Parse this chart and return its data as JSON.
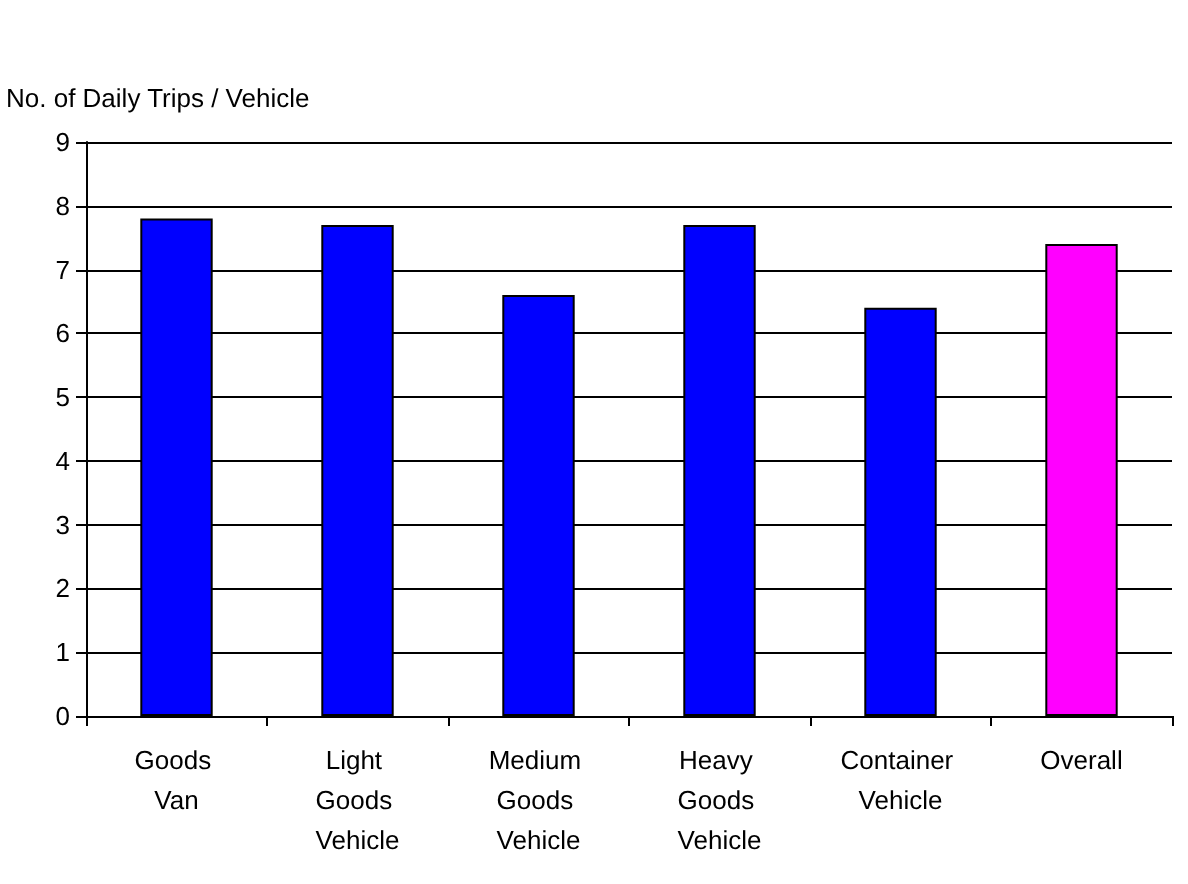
{
  "chart_data": {
    "type": "bar",
    "ylabel": "No. of Daily Trips / Vehicle",
    "categories": [
      "Goods Van",
      "Light Goods Vehicle",
      "Medium Goods Vehicle",
      "Heavy Goods Vehicle",
      "Container Vehicle",
      "Overall"
    ],
    "values": [
      7.8,
      7.7,
      6.6,
      7.7,
      6.4,
      7.4
    ],
    "colors": [
      "#0000ff",
      "#0000ff",
      "#0000ff",
      "#0000ff",
      "#0000ff",
      "#ff00ff"
    ],
    "ylim": [
      0,
      9
    ],
    "yticks": [
      0,
      1,
      2,
      3,
      4,
      5,
      6,
      7,
      8,
      9
    ],
    "grid": "y"
  }
}
